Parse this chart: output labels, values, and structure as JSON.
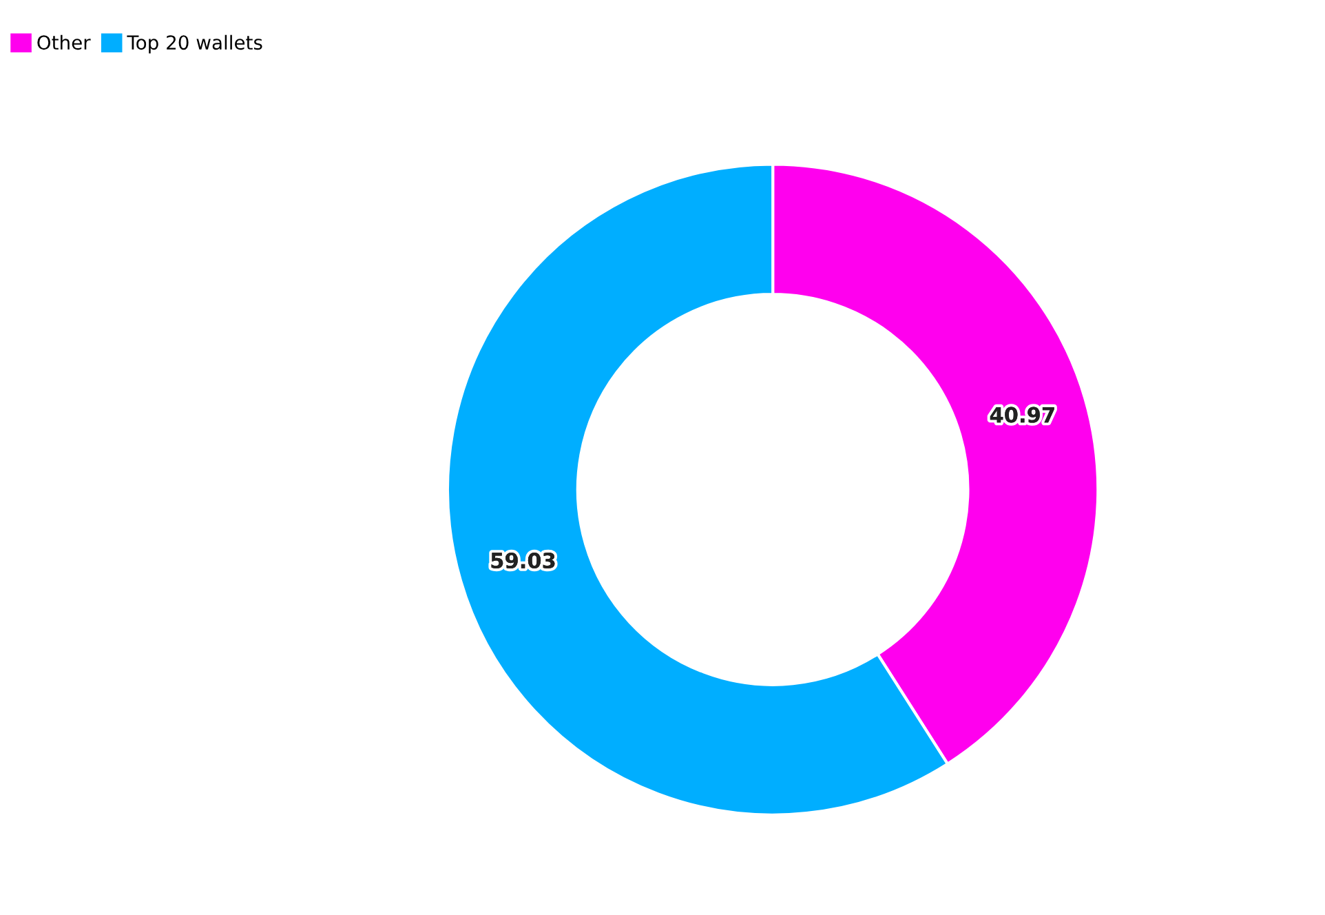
{
  "chart_data": {
    "type": "donut",
    "categories": [
      "Other",
      "Top 20 wallets"
    ],
    "values": [
      40.97,
      59.03
    ],
    "colors": [
      "#ff00ee",
      "#00aeff"
    ],
    "data_labels": true,
    "legend": "top left"
  }
}
